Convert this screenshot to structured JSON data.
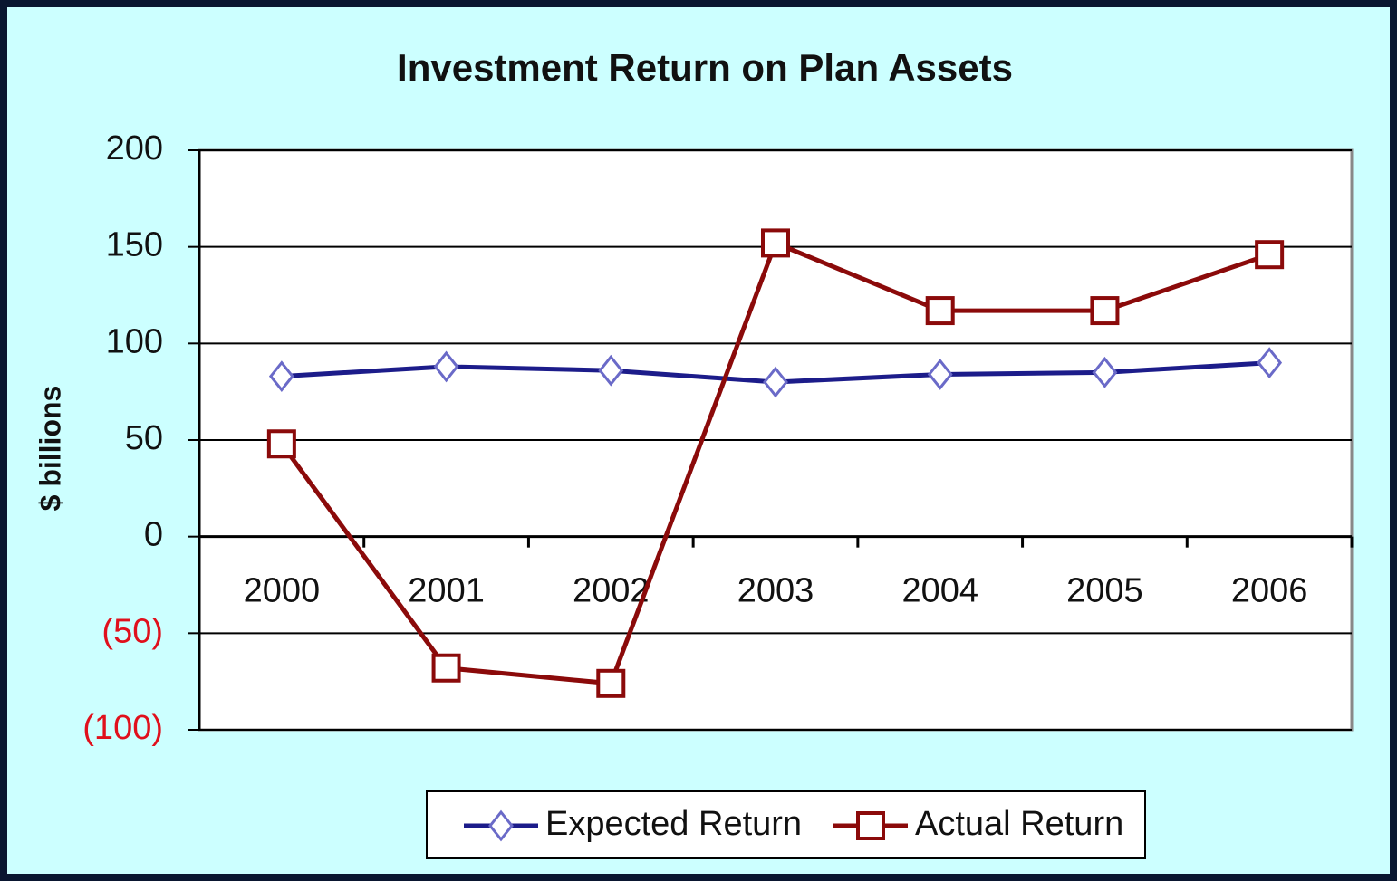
{
  "chart_data": {
    "type": "line",
    "title": "Investment Return on Plan Assets",
    "y_label": "$ billions",
    "categories": [
      "2000",
      "2001",
      "2002",
      "2003",
      "2004",
      "2005",
      "2006"
    ],
    "series": [
      {
        "name": "Expected Return",
        "color": "#1c1c8a",
        "marker": "diamond",
        "values": [
          83,
          88,
          86,
          80,
          84,
          85,
          90
        ]
      },
      {
        "name": "Actual Return",
        "color": "#8b0a0a",
        "marker": "square",
        "values": [
          48,
          -68,
          -76,
          152,
          117,
          117,
          146
        ]
      }
    ],
    "ylim": [
      -100,
      200
    ],
    "yticks": [
      {
        "value": -100,
        "label": "(100)"
      },
      {
        "value": -50,
        "label": "(50)"
      },
      0,
      50,
      100,
      150,
      200
    ],
    "grid": true,
    "legend": "bottom"
  }
}
